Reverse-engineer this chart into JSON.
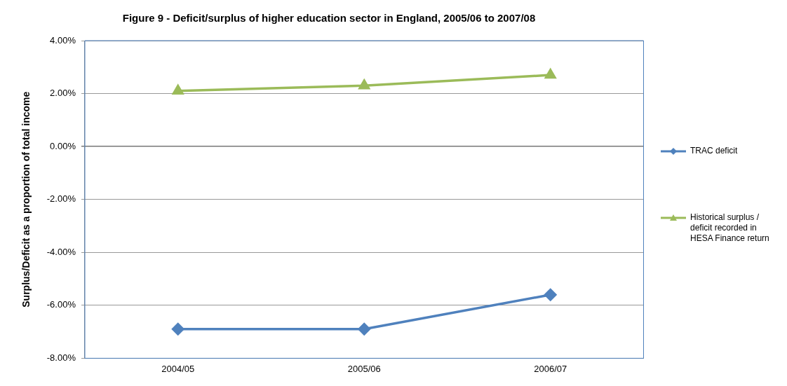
{
  "chart_data": {
    "type": "line",
    "title": "Figure 9 - Deficit/surplus of higher education sector in England, 2005/06 to 2007/08",
    "ylabel": "Surplus/Deficit as a proportion of total income",
    "categories": [
      "2004/05",
      "2005/06",
      "2006/07"
    ],
    "series": [
      {
        "name": "TRAC deficit",
        "color": "#4f81bd",
        "values": [
          -6.9,
          -6.9,
          -5.6
        ],
        "marker": "diamond"
      },
      {
        "name": "Historical surplus / deficit recorded in HESA Finance return",
        "color": "#9bbb59",
        "values": [
          2.1,
          2.3,
          2.7
        ],
        "marker": "triangle"
      }
    ],
    "ylim": [
      -8,
      4
    ],
    "yticks": [
      {
        "value": -8,
        "label": "-8.00%"
      },
      {
        "value": -6,
        "label": "-6.00%"
      },
      {
        "value": -4,
        "label": "-4.00%"
      },
      {
        "value": -2,
        "label": "-2.00%"
      },
      {
        "value": 0,
        "label": "0.00%"
      },
      {
        "value": 2,
        "label": "2.00%"
      },
      {
        "value": 4,
        "label": "4.00%"
      }
    ],
    "grid": "y",
    "legend": "right",
    "line_style": "solid"
  }
}
